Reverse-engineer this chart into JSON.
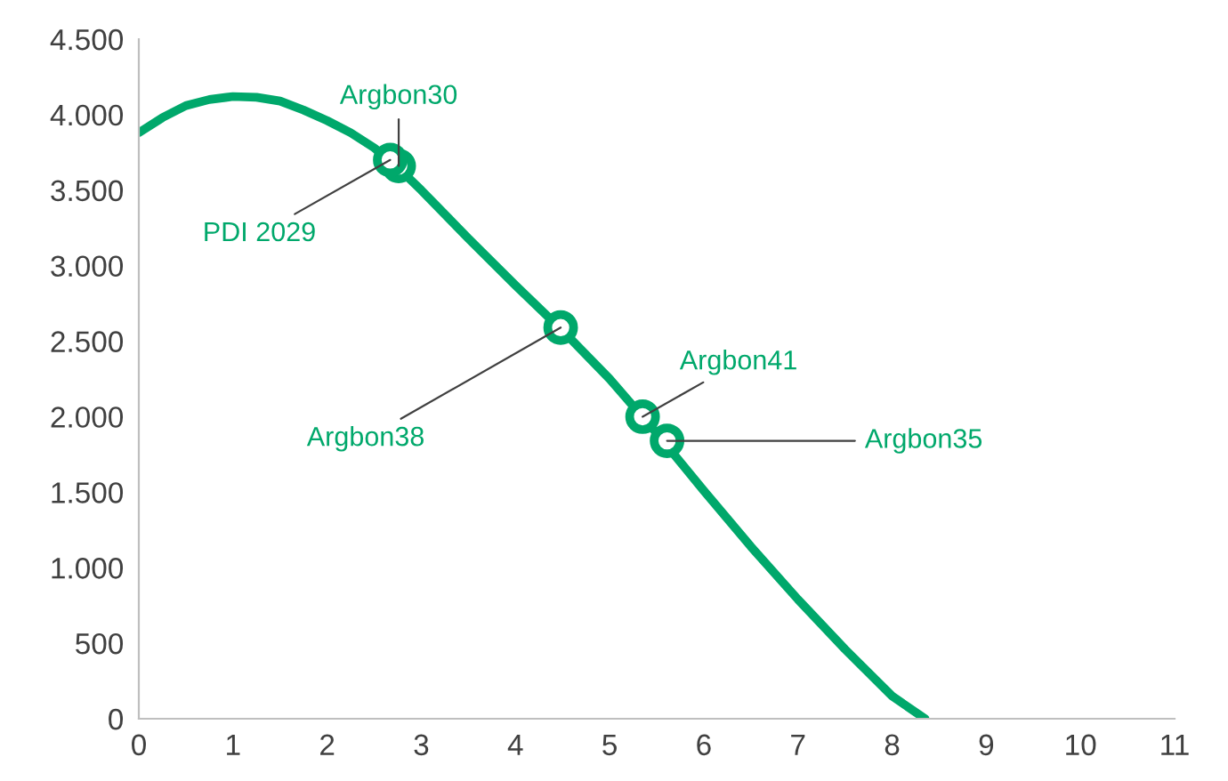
{
  "chart_data": {
    "type": "line",
    "xlim": [
      0,
      11
    ],
    "ylim": [
      0,
      4500
    ],
    "xticks": [
      0,
      1,
      2,
      3,
      4,
      5,
      6,
      7,
      8,
      9,
      10,
      11
    ],
    "yticks": [
      0,
      500,
      {
        "value": 1000,
        "label": "1.000"
      },
      {
        "value": 1500,
        "label": "1.500"
      },
      {
        "value": 2000,
        "label": "2.000"
      },
      {
        "value": 2500,
        "label": "2.500"
      },
      {
        "value": 3000,
        "label": "3.000"
      },
      {
        "value": 3500,
        "label": "3.500"
      },
      {
        "value": 4000,
        "label": "4.000"
      },
      {
        "value": 4500,
        "label": "4.500"
      }
    ],
    "grid": false,
    "legend": false,
    "series": [
      {
        "color": "#00a86b",
        "marker": "none",
        "x": [
          0,
          0.25,
          0.5,
          0.75,
          1,
          1.25,
          1.5,
          1.75,
          2,
          2.25,
          2.5,
          2.75,
          3,
          3.5,
          4,
          4.5,
          5,
          5.5,
          6,
          6.5,
          7,
          7.5,
          8,
          8.35
        ],
        "values": [
          3880,
          3980,
          4060,
          4100,
          4120,
          4115,
          4090,
          4030,
          3960,
          3880,
          3780,
          3650,
          3500,
          3180,
          2870,
          2570,
          2250,
          1890,
          1510,
          1140,
          790,
          460,
          150,
          0
        ]
      },
      {
        "type": "scatter",
        "color": "#00a86b",
        "marker": "circle",
        "x": [
          2.76,
          2.67,
          4.48,
          5.35,
          5.61
        ],
        "values": [
          3660,
          3700,
          2590,
          2000,
          1840
        ]
      }
    ],
    "annotations": [
      {
        "text": "Argbon30",
        "x": 2.76,
        "y": 3660
      },
      {
        "text": "PDI 2029",
        "x": 2.67,
        "y": 3700
      },
      {
        "text": "Argbon38",
        "x": 4.48,
        "y": 2590
      },
      {
        "text": "Argbon41",
        "x": 5.35,
        "y": 2000
      },
      {
        "text": "Argbon35",
        "x": 5.61,
        "y": 1840
      }
    ]
  }
}
